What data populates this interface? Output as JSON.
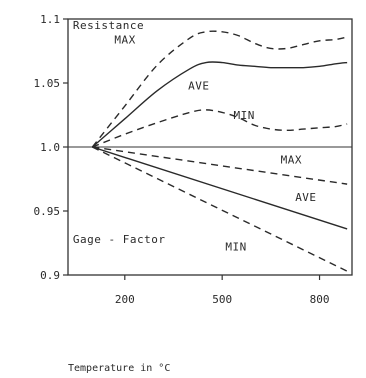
{
  "chart_data": {
    "type": "line",
    "title": "",
    "xlabel": "Temperature in °C",
    "ylabel": "",
    "x_tick_labels": [
      "200",
      "500",
      "800"
    ],
    "x_ticks": [
      200,
      500,
      800
    ],
    "y_ticks": [
      0.9,
      0.95,
      1.0,
      1.05,
      1.1
    ],
    "y_tick_labels": [
      "0.9",
      "0.95",
      "1.0",
      "1.05",
      "1.1"
    ],
    "xlim": [
      25,
      900
    ],
    "ylim": [
      0.9,
      1.1
    ],
    "grid": false,
    "reference_line": 1.0,
    "groups": [
      {
        "label": "Resistance",
        "label_pos": [
          40,
          1.092
        ]
      },
      {
        "label": "Gage - Factor",
        "label_pos": [
          40,
          0.925
        ]
      }
    ],
    "series": [
      {
        "name": "MAX",
        "group": "Resistance",
        "style": "dashed",
        "label_pos": [
          168,
          1.081
        ],
        "x": [
          100,
          200,
          300,
          400,
          450,
          500,
          550,
          600,
          650,
          700,
          750,
          800,
          850,
          885
        ],
        "y": [
          1.0,
          1.032,
          1.064,
          1.085,
          1.09,
          1.09,
          1.087,
          1.081,
          1.077,
          1.077,
          1.08,
          1.083,
          1.084,
          1.086
        ]
      },
      {
        "name": "AVE",
        "group": "Resistance",
        "style": "solid",
        "label_pos": [
          395,
          1.045
        ],
        "x": [
          100,
          200,
          300,
          400,
          450,
          500,
          550,
          600,
          650,
          700,
          750,
          800,
          850,
          885
        ],
        "y": [
          1.0,
          1.022,
          1.044,
          1.061,
          1.066,
          1.066,
          1.064,
          1.063,
          1.062,
          1.062,
          1.062,
          1.063,
          1.065,
          1.066
        ]
      },
      {
        "name": "MIN",
        "group": "Resistance",
        "style": "dashed",
        "label_pos": [
          535,
          1.022
        ],
        "x": [
          100,
          200,
          300,
          400,
          450,
          500,
          550,
          600,
          650,
          700,
          750,
          800,
          850,
          885
        ],
        "y": [
          1.0,
          1.01,
          1.019,
          1.027,
          1.029,
          1.027,
          1.023,
          1.017,
          1.014,
          1.013,
          1.014,
          1.015,
          1.016,
          1.018
        ]
      },
      {
        "name": "MAX",
        "group": "Gage - Factor",
        "style": "dashed",
        "label_pos": [
          680,
          0.987
        ],
        "x": [
          100,
          885
        ],
        "y": [
          1.0,
          0.971
        ]
      },
      {
        "name": "AVE",
        "group": "Gage - Factor",
        "style": "solid",
        "label_pos": [
          725,
          0.958
        ],
        "x": [
          100,
          885
        ],
        "y": [
          1.0,
          0.936
        ]
      },
      {
        "name": "MIN",
        "group": "Gage - Factor",
        "style": "dashed",
        "label_pos": [
          510,
          0.919
        ],
        "x": [
          100,
          885
        ],
        "y": [
          1.0,
          0.903
        ]
      }
    ]
  }
}
